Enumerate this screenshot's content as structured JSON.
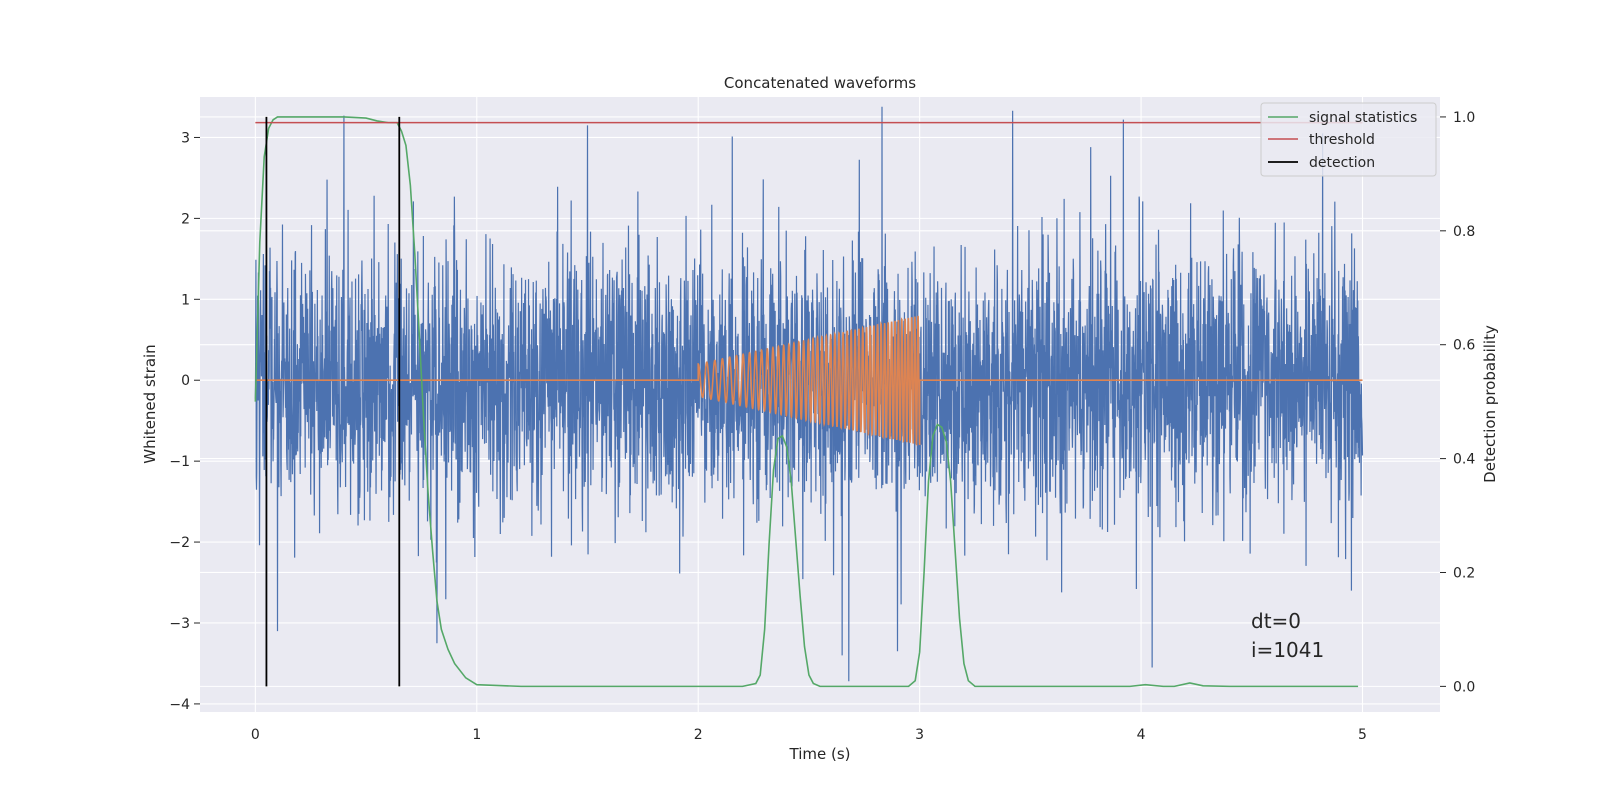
{
  "chart_data": {
    "type": "line",
    "title": "Concatenated waveforms",
    "xlabel": "Time (s)",
    "ylabel": "Whitened strain",
    "y2label": "Detection probability",
    "xlim": [
      -0.25,
      5.35
    ],
    "ylim": [
      -4.1,
      3.5
    ],
    "y2lim": [
      -0.045,
      1.035
    ],
    "xticks": [
      0,
      1,
      2,
      3,
      4,
      5
    ],
    "yticks": [
      -4,
      -3,
      -2,
      -1,
      0,
      1,
      2,
      3
    ],
    "y2ticks": [
      0.0,
      0.2,
      0.4,
      0.6,
      0.8,
      1.0
    ],
    "xtick_labels": [
      "0",
      "1",
      "2",
      "3",
      "4",
      "5"
    ],
    "ytick_labels": [
      "−4",
      "−3",
      "−2",
      "−1",
      "0",
      "1",
      "2",
      "3"
    ],
    "y2tick_labels": [
      "0.0",
      "0.2",
      "0.4",
      "0.6",
      "0.8",
      "1.0"
    ],
    "grid": true,
    "legend_position": "top-right",
    "legend": [
      "signal statistics",
      "threshold",
      "detection"
    ],
    "annotations": [
      "dt=0",
      "i=1041"
    ],
    "colors": {
      "noise": "#4c72b0",
      "injected_signal": "#dd8452",
      "signal_statistics": "#55a868",
      "threshold": "#c44e52",
      "detection": "#000000",
      "plot_background": "#eaeaf2",
      "grid": "#ffffff"
    },
    "series": [
      {
        "id": "noise",
        "axis": "left",
        "kind": "noise",
        "x_range": [
          0,
          5
        ],
        "std": 0.8,
        "upper_peaks": [
          [
            0.4,
            3.27
          ],
          [
            1.5,
            3.15
          ],
          [
            2.83,
            3.38
          ],
          [
            3.42,
            3.33
          ],
          [
            3.92,
            3.22
          ],
          [
            4.82,
            3.05
          ]
        ],
        "lower_peaks": [
          [
            0.1,
            -3.1
          ],
          [
            0.82,
            -3.25
          ],
          [
            2.65,
            -3.4
          ],
          [
            2.68,
            -3.72
          ],
          [
            2.9,
            -3.35
          ],
          [
            4.05,
            -3.55
          ],
          [
            4.95,
            -2.6
          ]
        ]
      },
      {
        "id": "injected_signal",
        "axis": "left",
        "kind": "chirp",
        "x_range": [
          0,
          5
        ],
        "chirp_start": 2.0,
        "chirp_end": 3.0,
        "amplitude_start": 0.2,
        "amplitude_end": 0.8,
        "freq_start_hz": 25,
        "freq_end_hz": 70
      },
      {
        "id": "signal_statistics",
        "name": "signal statistics",
        "axis": "right",
        "x": [
          0.0,
          0.02,
          0.04,
          0.06,
          0.08,
          0.1,
          0.2,
          0.3,
          0.4,
          0.5,
          0.55,
          0.6,
          0.64,
          0.66,
          0.68,
          0.7,
          0.72,
          0.74,
          0.76,
          0.78,
          0.8,
          0.82,
          0.84,
          0.87,
          0.9,
          0.95,
          1.0,
          1.2,
          1.5,
          2.0,
          2.2,
          2.26,
          2.28,
          2.3,
          2.32,
          2.34,
          2.36,
          2.38,
          2.4,
          2.42,
          2.44,
          2.46,
          2.48,
          2.5,
          2.52,
          2.55,
          2.6,
          2.8,
          2.95,
          2.98,
          3.0,
          3.02,
          3.04,
          3.06,
          3.08,
          3.1,
          3.12,
          3.14,
          3.16,
          3.18,
          3.2,
          3.22,
          3.25,
          3.3,
          3.5,
          3.8,
          3.95,
          4.02,
          4.1,
          4.15,
          4.22,
          4.28,
          4.4,
          4.7,
          4.98
        ],
        "y": [
          0.5,
          0.78,
          0.93,
          0.98,
          0.995,
          1.0,
          1.0,
          1.0,
          1.0,
          0.998,
          0.993,
          0.99,
          0.99,
          0.975,
          0.95,
          0.88,
          0.76,
          0.62,
          0.47,
          0.34,
          0.24,
          0.15,
          0.1,
          0.065,
          0.04,
          0.015,
          0.003,
          0.0,
          0.0,
          0.0,
          0.0,
          0.005,
          0.02,
          0.1,
          0.25,
          0.38,
          0.435,
          0.44,
          0.42,
          0.36,
          0.26,
          0.16,
          0.07,
          0.02,
          0.005,
          0.0,
          0.0,
          0.0,
          0.0,
          0.01,
          0.06,
          0.2,
          0.36,
          0.44,
          0.46,
          0.455,
          0.43,
          0.36,
          0.24,
          0.12,
          0.04,
          0.01,
          0.0,
          0.0,
          0.0,
          0.0,
          0.0,
          0.003,
          0.0,
          0.0,
          0.006,
          0.001,
          0.0,
          0.0,
          0.0
        ]
      },
      {
        "id": "threshold",
        "name": "threshold",
        "axis": "right",
        "x": [
          0,
          5
        ],
        "y": [
          0.99,
          0.99
        ]
      },
      {
        "id": "detection",
        "name": "detection",
        "axis": "right",
        "kind": "vlines",
        "x": [
          0.05,
          0.65
        ],
        "y_range": [
          0.0,
          1.0
        ]
      }
    ]
  }
}
